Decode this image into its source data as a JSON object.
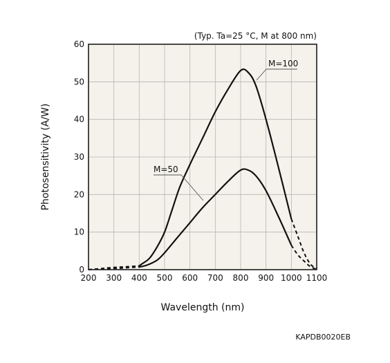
{
  "chart_data": {
    "type": "line",
    "xlabel": "Wavelength (nm)",
    "ylabel": "Photosensitivity (A/W)",
    "conditions": "(Typ. Ta=25 °C, M at 800 nm)",
    "figure_code": "KAPDB0020EB",
    "xlim": [
      200,
      1100
    ],
    "ylim": [
      0,
      60
    ],
    "xticks": [
      200,
      300,
      400,
      500,
      600,
      700,
      800,
      900,
      1000,
      1100
    ],
    "yticks": [
      0,
      10,
      20,
      30,
      40,
      50,
      60
    ],
    "grid": true,
    "series": [
      {
        "name": "M=100",
        "dashed_segments": [
          [
            [
              200,
              0
            ],
            [
              250,
              0.3
            ],
            [
              300,
              0.6
            ],
            [
              350,
              0.8
            ],
            [
              400,
              1.0
            ]
          ],
          [
            [
              1000,
              13.5
            ],
            [
              1025,
              9
            ],
            [
              1050,
              4.5
            ],
            [
              1075,
              1.5
            ],
            [
              1100,
              0.3
            ]
          ]
        ],
        "values": [
          [
            400,
            1.0
          ],
          [
            410,
            1.5
          ],
          [
            440,
            3
          ],
          [
            470,
            6
          ],
          [
            500,
            10
          ],
          [
            530,
            16
          ],
          [
            560,
            22
          ],
          [
            600,
            28
          ],
          [
            650,
            35
          ],
          [
            700,
            42
          ],
          [
            750,
            48
          ],
          [
            800,
            53
          ],
          [
            830,
            52.5
          ],
          [
            860,
            49
          ],
          [
            900,
            40
          ],
          [
            950,
            27
          ],
          [
            1000,
            13.5
          ]
        ]
      },
      {
        "name": "M=50",
        "dashed_segments": [
          [
            [
              200,
              0
            ],
            [
              250,
              0.2
            ],
            [
              300,
              0.3
            ],
            [
              350,
              0.5
            ],
            [
              400,
              0.7
            ]
          ],
          [
            [
              1000,
              6.5
            ],
            [
              1025,
              4
            ],
            [
              1050,
              2.3
            ],
            [
              1075,
              0.8
            ],
            [
              1100,
              0.1
            ]
          ]
        ],
        "values": [
          [
            400,
            0.7
          ],
          [
            430,
            1.2
          ],
          [
            470,
            2.5
          ],
          [
            500,
            4.5
          ],
          [
            550,
            8.5
          ],
          [
            600,
            12.5
          ],
          [
            650,
            16.5
          ],
          [
            700,
            20
          ],
          [
            750,
            23.5
          ],
          [
            800,
            26.5
          ],
          [
            830,
            26.5
          ],
          [
            860,
            25
          ],
          [
            900,
            21
          ],
          [
            950,
            14
          ],
          [
            1000,
            6.5
          ]
        ]
      }
    ]
  }
}
